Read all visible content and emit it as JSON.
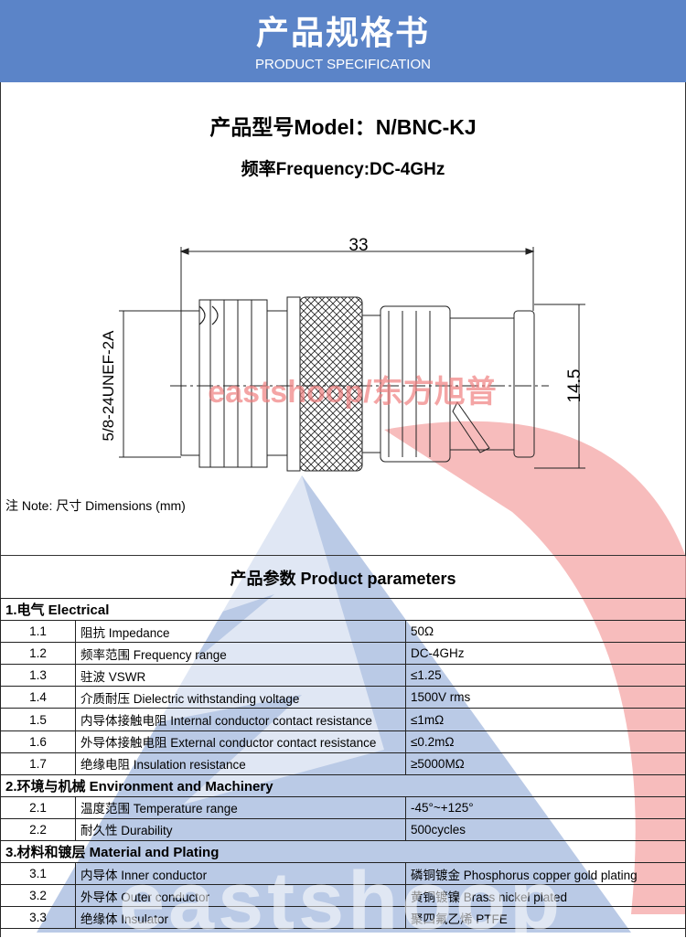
{
  "header": {
    "title": "产品规格书",
    "subtitle": "PRODUCT SPECIFICATION"
  },
  "model": "产品型号Model：N/BNC-KJ",
  "frequency": "频率Frequency:DC-4GHz",
  "drawing": {
    "length": "33",
    "diameter": "14.5",
    "thread": "5/8-24UNEF-2A"
  },
  "watermark": {
    "drawing": "eastshoop/东方旭普",
    "table": "eastshoop"
  },
  "note": "注 Note:  尺寸 Dimensions (mm)",
  "params_title": "产品参数 Product parameters",
  "colors": {
    "header": "#5b84c8",
    "watermark_red": "#f08080",
    "watermark_blue": "#4a6fb5"
  },
  "sections": [
    {
      "title": "1.电气 Electrical",
      "rows": [
        {
          "no": "1.1",
          "param": "阻抗 Impedance",
          "value": "50Ω"
        },
        {
          "no": "1.2",
          "param": "频率范围 Frequency range",
          "value": "DC-4GHz"
        },
        {
          "no": "1.3",
          "param": "驻波 VSWR",
          "value": "≤1.25"
        },
        {
          "no": "1.4",
          "param": "介质耐压 Dielectric withstanding voltage",
          "value": "1500V rms"
        },
        {
          "no": "1.5",
          "param": "内导体接触电阻 Internal conductor contact resistance",
          "value": "≤1mΩ"
        },
        {
          "no": "1.6",
          "param": "外导体接触电阻 External conductor contact resistance",
          "value": "≤0.2mΩ"
        },
        {
          "no": "1.7",
          "param": "绝缘电阻  Insulation resistance",
          "value": "≥5000MΩ"
        }
      ]
    },
    {
      "title": "2.环境与机械 Environment and Machinery",
      "rows": [
        {
          "no": "2.1",
          "param": "温度范围 Temperature range",
          "value": "-45°~+125°"
        },
        {
          "no": "2.2",
          "param": "耐久性 Durability",
          "value": "500cycles"
        }
      ]
    },
    {
      "title": "3.材料和镀层 Material and Plating",
      "rows": [
        {
          "no": "3.1",
          "param": "内导体 Inner conductor",
          "value": "磷铜镀金 Phosphorus copper gold plating"
        },
        {
          "no": "3.2",
          "param": "外导体 Outer conductor",
          "value": "黄铜镀镍 Brass nickel plated"
        },
        {
          "no": "3.3",
          "param": "绝缘体 Insulator",
          "value": "聚四氟乙烯 PTFE"
        }
      ]
    }
  ]
}
